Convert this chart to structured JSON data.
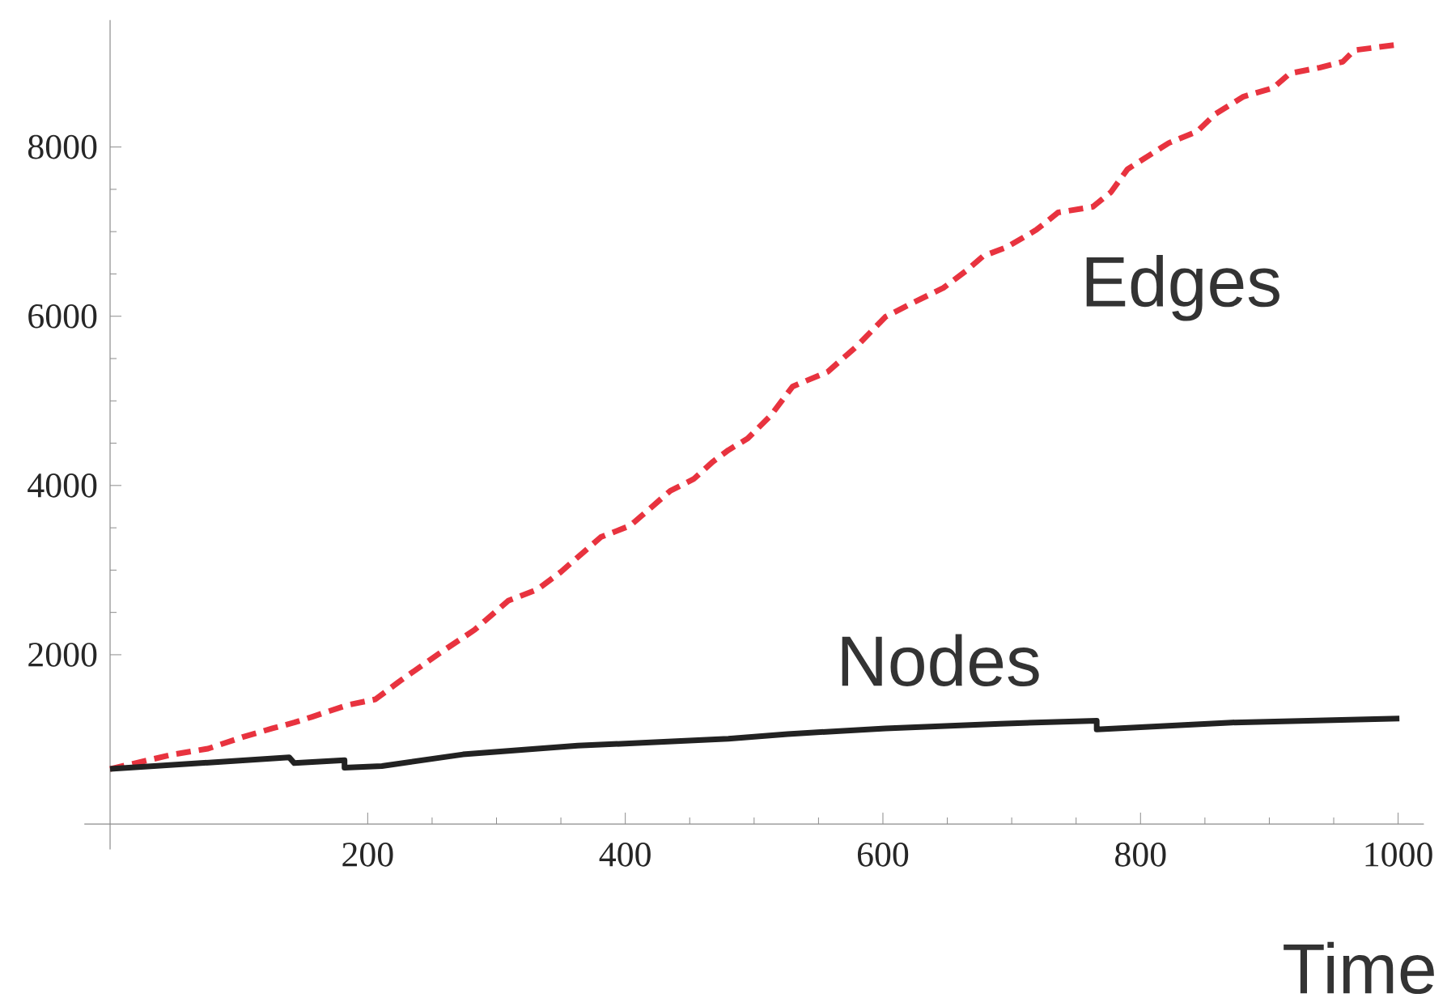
{
  "chart_data": {
    "type": "line",
    "xlabel": "Time",
    "xlim": [
      -20,
      1020
    ],
    "ylim": [
      -300,
      9500
    ],
    "xticks": [
      200,
      400,
      600,
      800,
      1000
    ],
    "yticks": [
      2000,
      4000,
      6000,
      8000
    ],
    "series": [
      {
        "name": "Edges",
        "color": "#e8333f",
        "line_style": "dashed",
        "x": [
          0,
          49,
          76,
          103,
          126,
          143,
          157,
          184,
          206,
          224,
          256,
          283,
          309,
          332,
          350,
          381,
          404,
          435,
          453,
          468,
          480,
          495,
          513,
          530,
          557,
          580,
          602,
          624,
          647,
          665,
          678,
          696,
          719,
          736,
          763,
          777,
          790,
          822,
          844,
          858,
          880,
          903,
          916,
          939,
          957,
          966,
          1001
        ],
        "values": [
          650,
          822,
          890,
          1027,
          1130,
          1199,
          1267,
          1404,
          1473,
          1678,
          2020,
          2294,
          2637,
          2774,
          2979,
          3390,
          3527,
          3938,
          4075,
          4281,
          4418,
          4555,
          4829,
          5171,
          5342,
          5650,
          5993,
          6164,
          6336,
          6541,
          6712,
          6815,
          7020,
          7226,
          7294,
          7466,
          7739,
          8048,
          8185,
          8390,
          8596,
          8698,
          8870,
          8938,
          9007,
          9144,
          9212
        ]
      },
      {
        "name": "Nodes",
        "color": "#222222",
        "line_style": "solid",
        "x": [
          0,
          139,
          143,
          182,
          182,
          211,
          274,
          363,
          413,
          480,
          526,
          602,
          691,
          766,
          766,
          871,
          1001
        ],
        "values": [
          650,
          788,
          719,
          753,
          664,
          685,
          822,
          925,
          959,
          1007,
          1062,
          1130,
          1185,
          1219,
          1116,
          1199,
          1247
        ]
      }
    ]
  }
}
